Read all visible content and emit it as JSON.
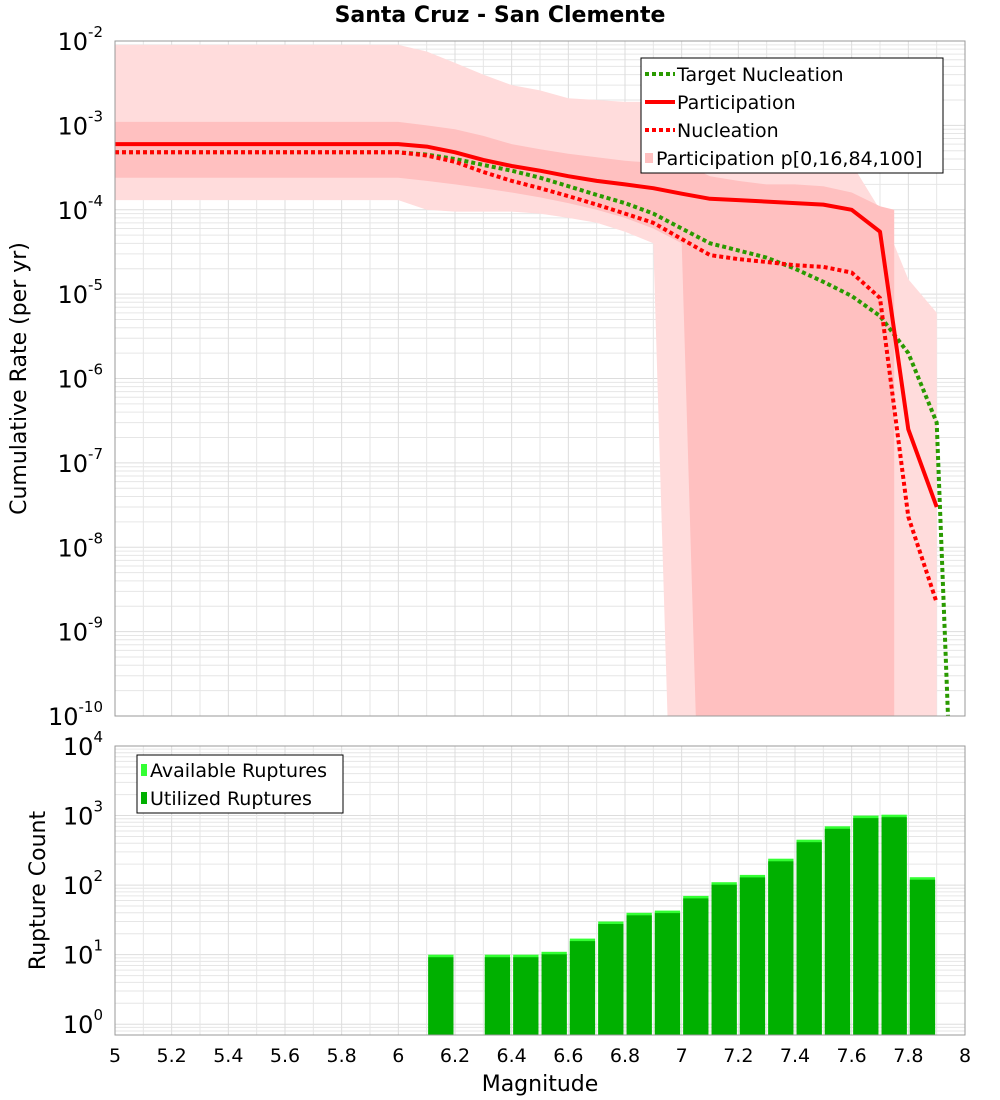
{
  "title": "Santa Cruz - San Clemente",
  "colors": {
    "target": "#2a9a00",
    "participation": "#ff0000",
    "nucleation": "#ff0000",
    "band_outer": "#ffdcdc",
    "band_inner": "#ffc0c0",
    "available": "#33ff33",
    "utilized": "#00b000",
    "grid": "#e6e6e6"
  },
  "chart_data": [
    {
      "type": "line",
      "title": "Santa Cruz - San Clemente",
      "xlabel": "",
      "ylabel": "Cumulative Rate (per yr)",
      "xlim": [
        5,
        8
      ],
      "ylim": [
        1e-10,
        0.01
      ],
      "yscale": "log",
      "grid": true,
      "legend_position": "top-right",
      "y_tick_exponents": [
        "-10",
        "-9",
        "-8",
        "-7",
        "-6",
        "-5",
        "-4",
        "-3",
        "-2"
      ],
      "series": [
        {
          "name": "Target Nucleation",
          "style": "dotted",
          "x": [
            5.0,
            6.0,
            6.1,
            6.2,
            6.3,
            6.4,
            6.5,
            6.6,
            6.7,
            6.8,
            6.9,
            7.0,
            7.1,
            7.2,
            7.3,
            7.4,
            7.5,
            7.6,
            7.7,
            7.8,
            7.9,
            7.94
          ],
          "y": [
            0.00048,
            0.00048,
            0.00045,
            0.0004,
            0.00034,
            0.00029,
            0.00024,
            0.00019,
            0.00015,
            0.00012,
            9e-05,
            6e-05,
            4e-05,
            3.3e-05,
            2.7e-05,
            2e-05,
            1.4e-05,
            9.5e-06,
            5.5e-06,
            2e-06,
            3e-07,
            1e-10
          ]
        },
        {
          "name": "Participation",
          "style": "solid",
          "x": [
            5.0,
            6.0,
            6.1,
            6.2,
            6.3,
            6.4,
            6.5,
            6.6,
            6.7,
            6.8,
            6.9,
            7.0,
            7.1,
            7.2,
            7.3,
            7.4,
            7.5,
            7.6,
            7.7,
            7.8,
            7.9
          ],
          "y": [
            0.0006,
            0.0006,
            0.00056,
            0.00048,
            0.00039,
            0.00033,
            0.00029,
            0.00025,
            0.00022,
            0.0002,
            0.00018,
            0.000155,
            0.000135,
            0.00013,
            0.000125,
            0.00012,
            0.000115,
            0.0001,
            5.5e-05,
            2.5e-07,
            3e-08
          ]
        },
        {
          "name": "Nucleation",
          "style": "dotted",
          "x": [
            5.0,
            6.0,
            6.1,
            6.2,
            6.3,
            6.4,
            6.5,
            6.6,
            6.7,
            6.8,
            6.9,
            7.0,
            7.1,
            7.2,
            7.3,
            7.4,
            7.5,
            7.6,
            7.7,
            7.8,
            7.9
          ],
          "y": [
            0.00048,
            0.00048,
            0.00044,
            0.00037,
            0.00028,
            0.00022,
            0.00018,
            0.000145,
            0.000115,
            9e-05,
            7e-05,
            4.5e-05,
            2.9e-05,
            2.6e-05,
            2.4e-05,
            2.2e-05,
            2.1e-05,
            1.8e-05,
            9e-06,
            2.3e-08,
            2.2e-09
          ]
        }
      ],
      "bands": [
        {
          "name": "Participation p[0,16,84,100]",
          "kind": "p0-p100",
          "x": [
            5.0,
            6.0,
            6.1,
            6.2,
            6.3,
            6.4,
            6.5,
            6.6,
            6.7,
            6.8,
            6.9,
            6.95,
            7.0,
            7.1,
            7.2,
            7.3,
            7.4,
            7.5,
            7.6,
            7.7,
            7.8,
            7.9
          ],
          "upper": [
            0.009,
            0.009,
            0.0075,
            0.0055,
            0.004,
            0.003,
            0.0026,
            0.0021,
            0.002,
            0.0019,
            0.0019,
            0.0019,
            0.0018,
            0.001,
            0.00085,
            0.0007,
            0.00065,
            0.0006,
            0.00035,
            0.0001,
            1.5e-05,
            6e-06
          ],
          "lower": [
            0.00013,
            0.00013,
            0.0001,
            9.5e-05,
            9.5e-05,
            9.5e-05,
            9e-05,
            8e-05,
            7e-05,
            5.5e-05,
            4e-05,
            1e-10,
            1e-10,
            1e-10,
            1e-10,
            1e-10,
            1e-10,
            1e-10,
            1e-10,
            1e-10,
            1e-10,
            1e-10
          ]
        },
        {
          "name": "p16-p84",
          "kind": "p16-p84",
          "x": [
            5.0,
            6.0,
            6.1,
            6.2,
            6.3,
            6.4,
            6.5,
            6.6,
            6.7,
            6.8,
            6.9,
            7.0,
            7.05,
            7.1,
            7.2,
            7.3,
            7.4,
            7.5,
            7.6,
            7.7,
            7.75
          ],
          "upper": [
            0.0011,
            0.0011,
            0.001,
            0.0009,
            0.00075,
            0.0006,
            0.00052,
            0.00046,
            0.00042,
            0.00038,
            0.00036,
            0.00034,
            0.0003,
            0.00025,
            0.00022,
            0.0002,
            0.0002,
            0.00019,
            0.00016,
            0.00011,
            0.0001
          ],
          "lower": [
            0.00024,
            0.00024,
            0.00022,
            0.0002,
            0.00018,
            0.00016,
            0.00014,
            0.00012,
            0.0001,
            8e-05,
            6e-05,
            4e-05,
            1e-10,
            1e-10,
            1e-10,
            1e-10,
            1e-10,
            1e-10,
            1e-10,
            1e-10,
            1e-10
          ]
        }
      ],
      "legend": [
        "Target Nucleation",
        "Participation",
        "Nucleation",
        "Participation p[0,16,84,100]"
      ]
    },
    {
      "type": "bar",
      "xlabel": "Magnitude",
      "ylabel": "Rupture Count",
      "xlim": [
        5,
        8
      ],
      "ylim": [
        0.7,
        10000.0
      ],
      "yscale": "log",
      "grid": true,
      "legend_position": "top-left",
      "x_ticks": [
        "5",
        "5.2",
        "5.4",
        "5.6",
        "5.8",
        "6",
        "6.2",
        "6.4",
        "6.6",
        "6.8",
        "7",
        "7.2",
        "7.4",
        "7.6",
        "7.8",
        "8"
      ],
      "y_tick_exponents": [
        "0",
        "1",
        "2",
        "3",
        "4"
      ],
      "bin_width": 0.1,
      "bin_centers": [
        6.15,
        6.35,
        6.45,
        6.55,
        6.65,
        6.75,
        6.85,
        6.95,
        7.05,
        7.15,
        7.25,
        7.35,
        7.45,
        7.55,
        7.65,
        7.75,
        7.85
      ],
      "series": [
        {
          "name": "Available Ruptures",
          "values": [
            10,
            10,
            10,
            11,
            17,
            30,
            40,
            43,
            70,
            110,
            140,
            240,
            450,
            700,
            1000,
            1030,
            130
          ]
        },
        {
          "name": "Utilized Ruptures",
          "values": [
            10,
            10,
            10,
            11,
            17,
            29,
            39,
            42,
            68,
            105,
            135,
            220,
            420,
            650,
            930,
            950,
            125
          ]
        }
      ],
      "legend": [
        "Available Ruptures",
        "Utilized Ruptures"
      ]
    }
  ]
}
